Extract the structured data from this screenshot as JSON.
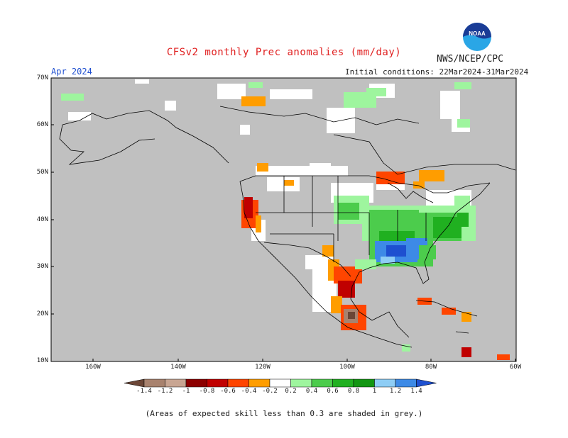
{
  "title": "CFSv2 monthly Prec anomalies (mm/day)",
  "agency": "NWS/NCEP/CPC",
  "logo_text": "NOAA",
  "forecast_month": "Apr 2024",
  "initial_conditions": "Initial conditions: 22Mar2024-31Mar2024",
  "lat_labels": [
    "70N",
    "60N",
    "50N",
    "40N",
    "30N",
    "20N",
    "10N"
  ],
  "lon_labels": [
    "160W",
    "140W",
    "120W",
    "100W",
    "80W",
    "60W"
  ],
  "colorbar": {
    "ticks": [
      "-1.4",
      "-1.2",
      "-1",
      "-0.8",
      "-0.6",
      "-0.4",
      "-0.2",
      "0.2",
      "0.4",
      "0.6",
      "0.8",
      "1",
      "1.2",
      "1.4"
    ],
    "colors": [
      "#6b4636",
      "#a8826e",
      "#c8a592",
      "#8c0000",
      "#c00000",
      "#ff4500",
      "#ff9d00",
      "#ffffff",
      "#9ef59e",
      "#4ccc4c",
      "#20b020",
      "#129612",
      "#8ecdf5",
      "#3d8ae6",
      "#1e50d0"
    ]
  },
  "colors": {
    "skill_mask": "#c0c0c0",
    "title": "#e02020",
    "month": "#2050d0"
  },
  "footnote": "(Areas of expected skill less than 0.3 are shaded in grey.)"
}
